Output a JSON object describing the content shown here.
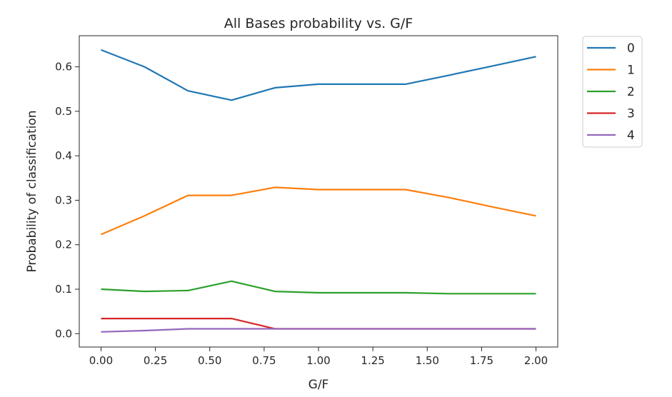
{
  "chart_data": {
    "type": "line",
    "title": "All Bases probability vs. G/F",
    "xlabel": "G/F",
    "ylabel": "Probability of classification",
    "x": [
      0.0,
      0.2,
      0.4,
      0.6,
      0.8,
      1.0,
      1.2,
      1.4,
      1.6,
      1.8,
      2.0
    ],
    "xlim": [
      -0.1,
      2.1
    ],
    "ylim": [
      -0.03,
      0.67
    ],
    "xticks": [
      0.0,
      0.25,
      0.5,
      0.75,
      1.0,
      1.25,
      1.5,
      1.75,
      2.0
    ],
    "xtick_labels": [
      "0.00",
      "0.25",
      "0.50",
      "0.75",
      "1.00",
      "1.25",
      "1.50",
      "1.75",
      "2.00"
    ],
    "yticks": [
      0.0,
      0.1,
      0.2,
      0.3,
      0.4,
      0.5,
      0.6
    ],
    "ytick_labels": [
      "0.0",
      "0.1",
      "0.2",
      "0.3",
      "0.4",
      "0.5",
      "0.6"
    ],
    "grid": false,
    "legend_position": "outside upper right",
    "series": [
      {
        "name": "0",
        "color": "#1f77b4",
        "values": [
          0.638,
          0.6,
          0.546,
          0.525,
          0.553,
          0.561,
          0.561,
          0.561,
          0.581,
          0.602,
          0.623
        ]
      },
      {
        "name": "1",
        "color": "#ff7f0e",
        "values": [
          0.223,
          0.265,
          0.311,
          0.311,
          0.329,
          0.324,
          0.324,
          0.324,
          0.306,
          0.285,
          0.265
        ]
      },
      {
        "name": "2",
        "color": "#2ca02c",
        "values": [
          0.1,
          0.095,
          0.097,
          0.118,
          0.095,
          0.092,
          0.092,
          0.092,
          0.09,
          0.09,
          0.09
        ]
      },
      {
        "name": "3",
        "color": "#d62728",
        "values": [
          0.034,
          0.034,
          0.034,
          0.034,
          0.011,
          0.011,
          0.011,
          0.011,
          0.011,
          0.011,
          0.011
        ]
      },
      {
        "name": "4",
        "color": "#9467bd",
        "values": [
          0.004,
          0.007,
          0.011,
          0.011,
          0.011,
          0.011,
          0.011,
          0.011,
          0.011,
          0.011,
          0.011
        ]
      }
    ]
  }
}
